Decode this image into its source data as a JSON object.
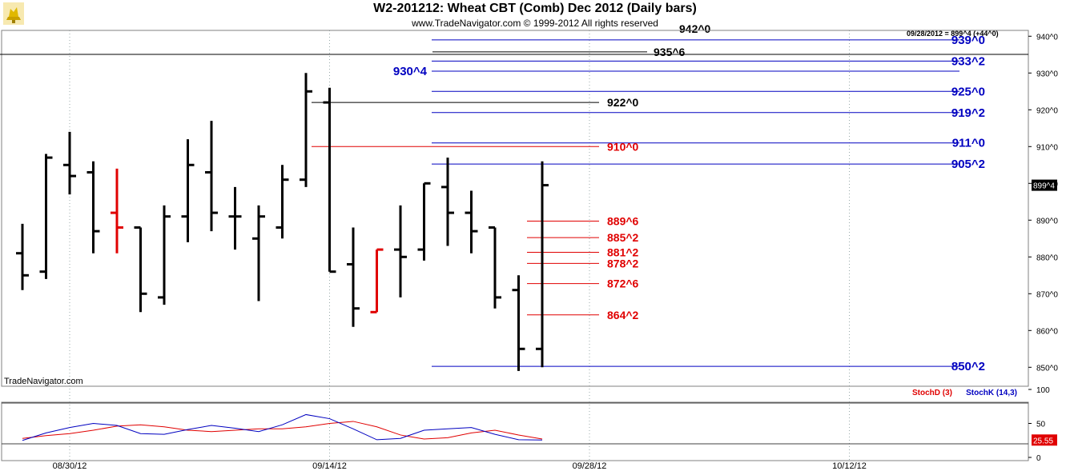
{
  "header": {
    "title": "W2-201212:  Wheat CBT (Comb) Dec 2012  (Daily bars)",
    "copyright": "www.TradeNavigator.com © 1999-2012 All rights reserved"
  },
  "brand": "TradeNavigator.com",
  "last_update": "09/28/2012 = 899^4 (+44^0)",
  "colors": {
    "up": "#000000",
    "down_marked": "#e00000",
    "projection": "#0000c0",
    "stochD": "#e00000",
    "stochK": "#0000c0",
    "price_badge_bg": "#000000",
    "stoch_badge_bg": "#e00000"
  },
  "chart_data": [
    {
      "type": "ohlc",
      "title": "W2-201212:  Wheat CBT (Comb) Dec 2012  (Daily bars)",
      "ylim": [
        845,
        942
      ],
      "yticks": [
        "940^0",
        "930^0",
        "920^0",
        "910^0",
        "900^0",
        "890^0",
        "880^0",
        "870^0",
        "860^0",
        "850^0"
      ],
      "ytick_values": [
        940,
        930,
        920,
        910,
        900,
        890,
        880,
        870,
        860,
        850
      ],
      "xlabels": [
        "08/30/12",
        "09/14/12",
        "09/28/12",
        "10/12/12"
      ],
      "xlabel_index": [
        2,
        13,
        24,
        35
      ],
      "last_price_label": "899^4",
      "last_price": 899.5,
      "bars": [
        {
          "d": "08/28/12",
          "o": 881,
          "h": 889,
          "l": 871,
          "c": 875,
          "red": false
        },
        {
          "d": "08/29/12",
          "o": 876,
          "h": 908,
          "l": 874,
          "c": 907,
          "red": false
        },
        {
          "d": "08/30/12",
          "o": 905,
          "h": 914,
          "l": 897,
          "c": 902,
          "red": false
        },
        {
          "d": "08/31/12",
          "o": 903,
          "h": 906,
          "l": 881,
          "c": 887,
          "red": false
        },
        {
          "d": "09/03/12",
          "o": 892,
          "h": 904,
          "l": 881,
          "c": 888,
          "red": true
        },
        {
          "d": "09/04/12",
          "o": 888,
          "h": 888,
          "l": 865,
          "c": 870,
          "red": false
        },
        {
          "d": "09/05/12",
          "o": 869,
          "h": 894,
          "l": 867,
          "c": 891,
          "red": false
        },
        {
          "d": "09/06/12",
          "o": 891,
          "h": 912,
          "l": 884,
          "c": 905,
          "red": false
        },
        {
          "d": "09/07/12",
          "o": 903,
          "h": 917,
          "l": 887,
          "c": 892,
          "red": false
        },
        {
          "d": "09/10/12",
          "o": 891,
          "h": 899,
          "l": 882,
          "c": 891,
          "red": false
        },
        {
          "d": "09/11/12",
          "o": 885,
          "h": 894,
          "l": 868,
          "c": 891,
          "red": false
        },
        {
          "d": "09/12/12",
          "o": 888,
          "h": 905,
          "l": 885,
          "c": 901,
          "red": false
        },
        {
          "d": "09/13/12",
          "o": 901,
          "h": 930,
          "l": 899,
          "c": 925,
          "red": false
        },
        {
          "d": "09/14/12",
          "o": 922,
          "h": 926,
          "l": 876,
          "c": 876,
          "red": false
        },
        {
          "d": "09/17/12",
          "o": 878,
          "h": 888,
          "l": 861,
          "c": 866,
          "red": false
        },
        {
          "d": "09/18/12",
          "o": 865,
          "h": 882,
          "l": 865,
          "c": 882,
          "red": true
        },
        {
          "d": "09/19/12",
          "o": 882,
          "h": 894,
          "l": 869,
          "c": 880,
          "red": false
        },
        {
          "d": "09/20/12",
          "o": 882,
          "h": 900,
          "l": 879,
          "c": 900,
          "red": false
        },
        {
          "d": "09/21/12",
          "o": 899,
          "h": 907,
          "l": 883,
          "c": 892,
          "red": false
        },
        {
          "d": "09/24/12",
          "o": 892,
          "h": 898,
          "l": 881,
          "c": 887,
          "red": false
        },
        {
          "d": "09/25/12",
          "o": 888,
          "h": 888,
          "l": 866,
          "c": 869,
          "red": false
        },
        {
          "d": "09/26/12",
          "o": 871,
          "h": 875,
          "l": 849,
          "c": 855,
          "red": false
        },
        {
          "d": "09/27/12",
          "o": 855,
          "h": 906,
          "l": 850,
          "c": 899.5,
          "red": false
        }
      ],
      "levels": [
        {
          "label": "939^0",
          "value": 939,
          "color": "blue"
        },
        {
          "label": "935^6",
          "value": 935.75,
          "color": "black"
        },
        {
          "label": "933^2",
          "value": 933.25,
          "color": "blue"
        },
        {
          "label": "930^4",
          "value": 930.5,
          "color": "blue"
        },
        {
          "label": "925^0",
          "value": 925,
          "color": "blue"
        },
        {
          "label": "922^0",
          "value": 922,
          "color": "black"
        },
        {
          "label": "919^2",
          "value": 919.25,
          "color": "blue"
        },
        {
          "label": "911^0",
          "value": 911,
          "color": "blue"
        },
        {
          "label": "910^0",
          "value": 910,
          "color": "red"
        },
        {
          "label": "905^2",
          "value": 905.25,
          "color": "blue"
        },
        {
          "label": "889^6",
          "value": 889.75,
          "color": "red"
        },
        {
          "label": "885^2",
          "value": 885.25,
          "color": "red"
        },
        {
          "label": "881^2",
          "value": 881.25,
          "color": "red"
        },
        {
          "label": "878^2",
          "value": 878.25,
          "color": "red"
        },
        {
          "label": "872^6",
          "value": 872.75,
          "color": "red"
        },
        {
          "label": "864^2",
          "value": 864.25,
          "color": "red"
        },
        {
          "label": "850^2",
          "value": 850.25,
          "color": "blue"
        },
        {
          "label": "942^0",
          "value": 942,
          "color": "black"
        }
      ]
    },
    {
      "type": "line",
      "title": "Stochastics",
      "ylim": [
        0,
        100
      ],
      "yticks": [
        "100",
        "50",
        "0"
      ],
      "ytick_values": [
        100,
        50,
        0
      ],
      "legend": [
        "StochD (3)",
        "StochK (14,3)"
      ],
      "last_value_label": "25.55",
      "series": [
        {
          "name": "StochD (3)",
          "color": "red",
          "values": [
            28,
            32,
            35,
            40,
            46,
            48,
            45,
            40,
            38,
            40,
            42,
            42,
            45,
            50,
            53,
            45,
            33,
            27,
            29,
            36,
            40,
            33,
            27
          ]
        },
        {
          "name": "StochK (14,3)",
          "color": "blue",
          "values": [
            25,
            36,
            44,
            50,
            47,
            35,
            34,
            41,
            47,
            43,
            38,
            48,
            63,
            57,
            42,
            26,
            28,
            40,
            42,
            44,
            34,
            26,
            25.55
          ]
        }
      ]
    }
  ]
}
